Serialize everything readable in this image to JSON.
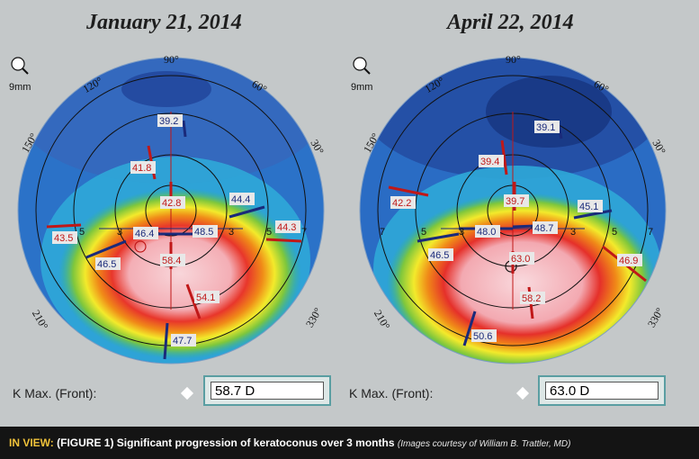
{
  "dates": {
    "left": "January 21, 2014",
    "right": "April 22, 2014"
  },
  "zoom_label": "9mm",
  "degree_labels": {
    "d90": "90°",
    "d120": "120°",
    "d60": "60°",
    "d150": "150°",
    "d30": "30°",
    "d210": "210°",
    "d330": "330°"
  },
  "ring_labels": {
    "r3": "3",
    "r5": "5",
    "r7": "7"
  },
  "left_map": {
    "values": {
      "v1": "39.2",
      "v2": "41.8",
      "v3": "42.8",
      "v4": "44.4",
      "v5": "44.3",
      "v6": "43.5",
      "v7": "46.4",
      "v8": "48.5",
      "v9": "46.5",
      "v10": "58.4",
      "v11": "54.1",
      "v12": "47.7"
    },
    "kmax_label": "K Max. (Front):",
    "kmax_value": "58.7 D"
  },
  "right_map": {
    "values": {
      "v1": "39.1",
      "v2": "39.4",
      "v3": "42.2",
      "v4": "39.7",
      "v5": "45.1",
      "v6": "48.0",
      "v7": "48.7",
      "v8": "46.5",
      "v9": "63.0",
      "v10": "46.9",
      "v11": "58.2",
      "v12": "50.6"
    },
    "kmax_label": "K Max. (Front):",
    "kmax_value": "63.0 D"
  },
  "caption": {
    "tag": "IN VIEW:",
    "text": "(FIGURE 1) Significant progression of keratoconus over 3 months",
    "credit": "(Images courtesy of William B. Trattler, MD)"
  },
  "colors": {
    "background": "#c4c8c9",
    "caption_bar": "#141414",
    "caption_tag": "#f0c23a",
    "box_border": "#5a9ea2",
    "red_value": "#c01818",
    "blue_value": "#1a2a7a"
  }
}
